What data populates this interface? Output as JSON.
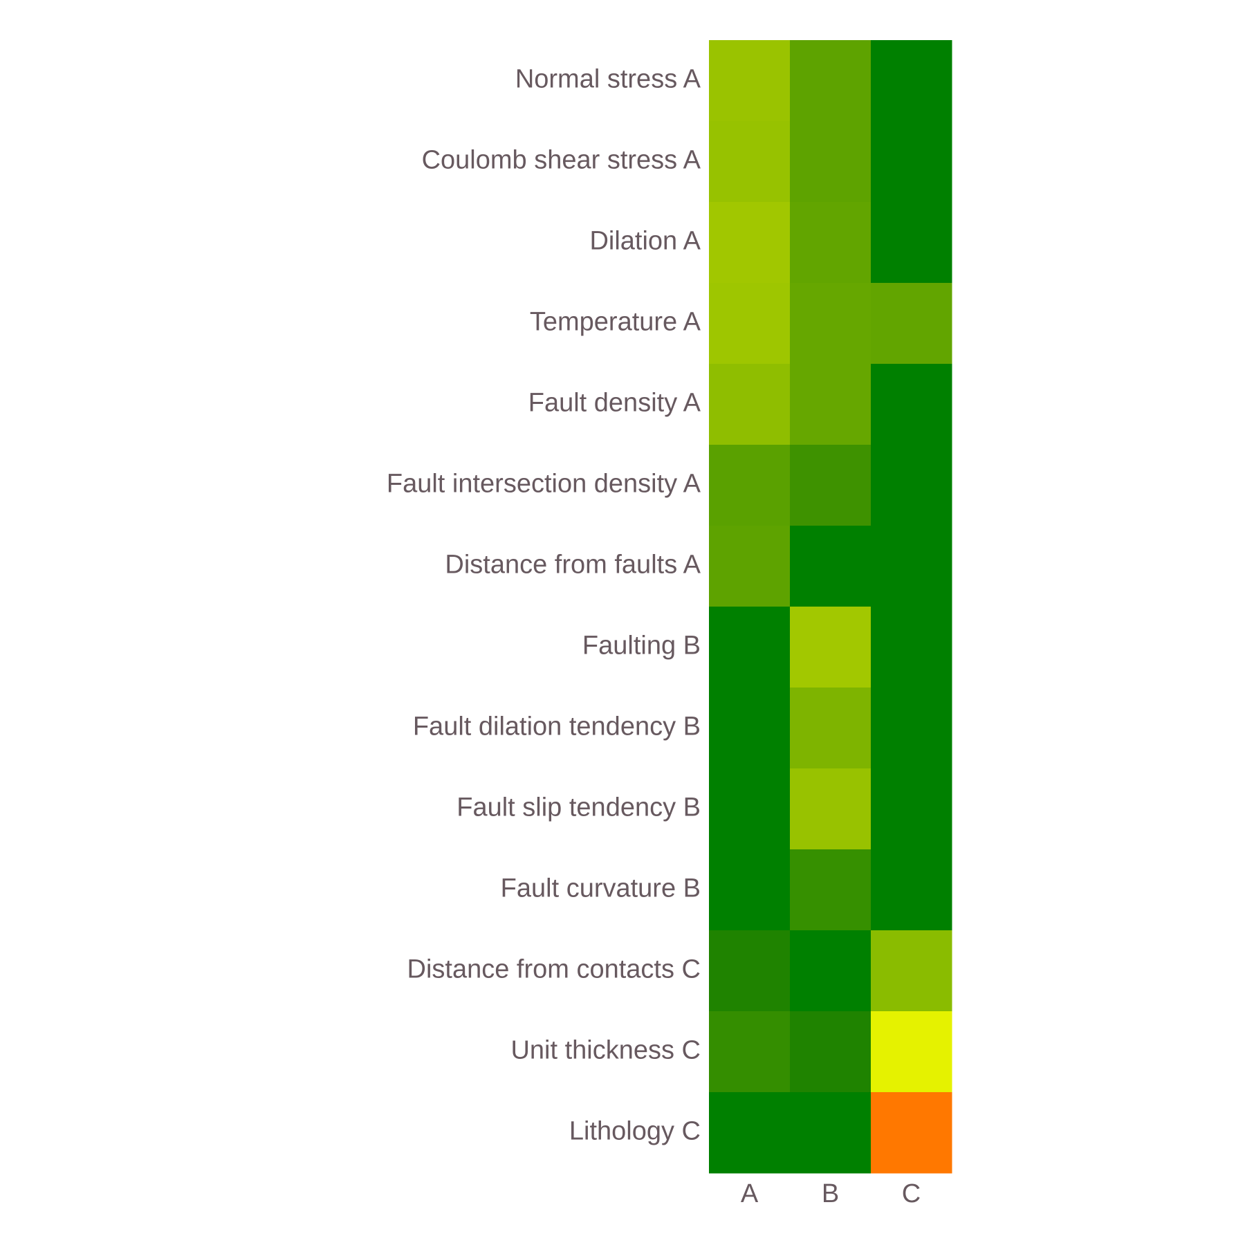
{
  "chart_data": {
    "type": "heatmap",
    "title": "",
    "xlabel": "",
    "ylabel": "",
    "columns": [
      "A",
      "B",
      "C"
    ],
    "rows": [
      "Normal stress A",
      "Coulomb shear stress A",
      "Dilation A",
      "Temperature A",
      "Fault density A",
      "Fault intersection density A",
      "Distance from faults A",
      "Faulting B",
      "Fault dilation tendency B",
      "Fault slip tendency B",
      "Fault curvature B",
      "Distance from contacts C",
      "Unit thickness C",
      "Lithology C"
    ],
    "cell_colors": [
      [
        "#9ac300",
        "#5ea300",
        "#008000"
      ],
      [
        "#97c200",
        "#5ea300",
        "#008000"
      ],
      [
        "#a1c700",
        "#62a500",
        "#008000"
      ],
      [
        "#9ec600",
        "#66a700",
        "#62a500"
      ],
      [
        "#8fbe00",
        "#66a700",
        "#008000"
      ],
      [
        "#5aa100",
        "#3e9200",
        "#008000"
      ],
      [
        "#5ea300",
        "#008000",
        "#008000"
      ],
      [
        "#008000",
        "#a2c800",
        "#008000"
      ],
      [
        "#008000",
        "#7eb400",
        "#008000"
      ],
      [
        "#008000",
        "#98c200",
        "#008000"
      ],
      [
        "#008000",
        "#369000",
        "#008000"
      ],
      [
        "#1f8300",
        "#008000",
        "#8abc00"
      ],
      [
        "#348e00",
        "#1f8300",
        "#e5f200"
      ],
      [
        "#008000",
        "#008000",
        "#ff7800"
      ]
    ],
    "colorscale": [
      "#008000",
      "#e5f200",
      "#ff7800"
    ],
    "grid": false,
    "legend": "none"
  }
}
